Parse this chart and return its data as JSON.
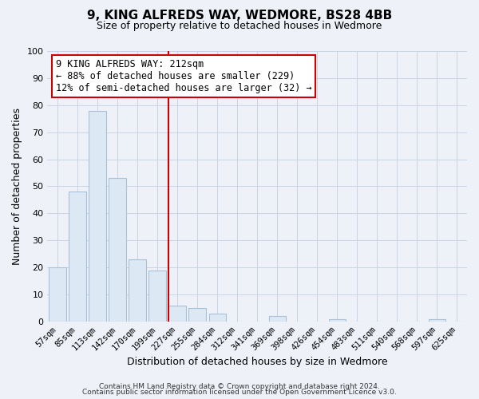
{
  "title": "9, KING ALFREDS WAY, WEDMORE, BS28 4BB",
  "subtitle": "Size of property relative to detached houses in Wedmore",
  "xlabel": "Distribution of detached houses by size in Wedmore",
  "ylabel": "Number of detached properties",
  "bar_labels": [
    "57sqm",
    "85sqm",
    "113sqm",
    "142sqm",
    "170sqm",
    "199sqm",
    "227sqm",
    "255sqm",
    "284sqm",
    "312sqm",
    "341sqm",
    "369sqm",
    "398sqm",
    "426sqm",
    "454sqm",
    "483sqm",
    "511sqm",
    "540sqm",
    "568sqm",
    "597sqm",
    "625sqm"
  ],
  "bar_values": [
    20,
    48,
    78,
    53,
    23,
    19,
    6,
    5,
    3,
    0,
    0,
    2,
    0,
    0,
    1,
    0,
    0,
    0,
    0,
    1,
    0
  ],
  "bar_color_fill": "#dce8f3",
  "bar_color_edge": "#a8c0d8",
  "vline_index": 6,
  "vline_color": "#cc0000",
  "annotation_line1": "9 KING ALFREDS WAY: 212sqm",
  "annotation_line2": "← 88% of detached houses are smaller (229)",
  "annotation_line3": "12% of semi-detached houses are larger (32) →",
  "ylim": [
    0,
    100
  ],
  "yticks": [
    0,
    10,
    20,
    30,
    40,
    50,
    60,
    70,
    80,
    90,
    100
  ],
  "grid_color": "#c8d4e4",
  "footer1": "Contains HM Land Registry data © Crown copyright and database right 2024.",
  "footer2": "Contains public sector information licensed under the Open Government Licence v3.0.",
  "bg_color": "#eef2f8",
  "plot_bg_color": "#eef2f8"
}
